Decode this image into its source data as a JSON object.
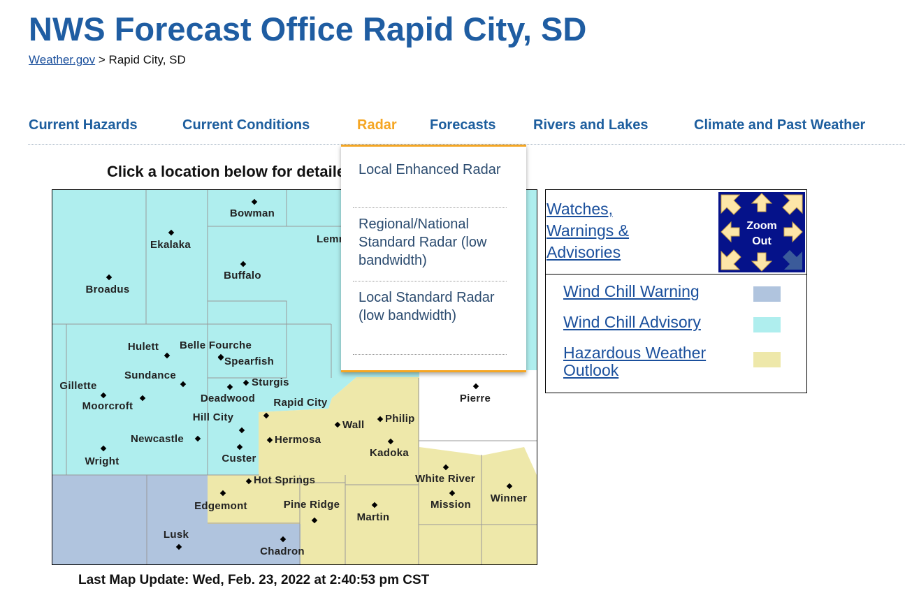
{
  "header": {
    "title": "NWS Forecast Office Rapid City, SD",
    "breadcrumb": {
      "home": "Weather.gov",
      "separator": ">",
      "current": "Rapid City, SD"
    }
  },
  "nav": {
    "items": [
      "Current Hazards",
      "Current Conditions",
      "Radar",
      "Forecasts",
      "Rivers and Lakes",
      "Climate and Past Weather"
    ],
    "active": 2,
    "dropdown": [
      "Local Enhanced Radar",
      "Regional/National Standard Radar (low bandwidth)",
      "Local Standard Radar (low bandwidth)"
    ]
  },
  "map": {
    "instruction": "Click a location below for detailed forecast.",
    "cities": [
      "Bowman",
      "Ekalaka",
      "Lemmon",
      "Buffalo",
      "Broadus",
      "Hulett",
      "Belle Fourche",
      "Spearfish",
      "Sundance",
      "Sturgis",
      "Gillette",
      "Deadwood",
      "Rapid City",
      "Moorcroft",
      "Hill City",
      "Wall",
      "Philip",
      "Pierre",
      "Newcastle",
      "Hermosa",
      "Custer",
      "Kadoka",
      "Wright",
      "White River",
      "Hot Springs",
      "Winner",
      "Edgemont",
      "Pine Ridge",
      "Mission",
      "Martin",
      "Lusk",
      "Chadron"
    ],
    "last_update": "Last Map Update: Wed, Feb. 23, 2022 at 2:40:53 pm CST"
  },
  "legend": {
    "heading": "Watches, Warnings & Advisories",
    "zoom": "Zoom Out",
    "items": [
      {
        "name": "Wind Chill Warning",
        "color": "#b0c4de"
      },
      {
        "name": "Wind Chill Advisory",
        "color": "#afeeee"
      },
      {
        "name": "Hazardous Weather Outlook",
        "color": "#eee8aa"
      }
    ]
  }
}
